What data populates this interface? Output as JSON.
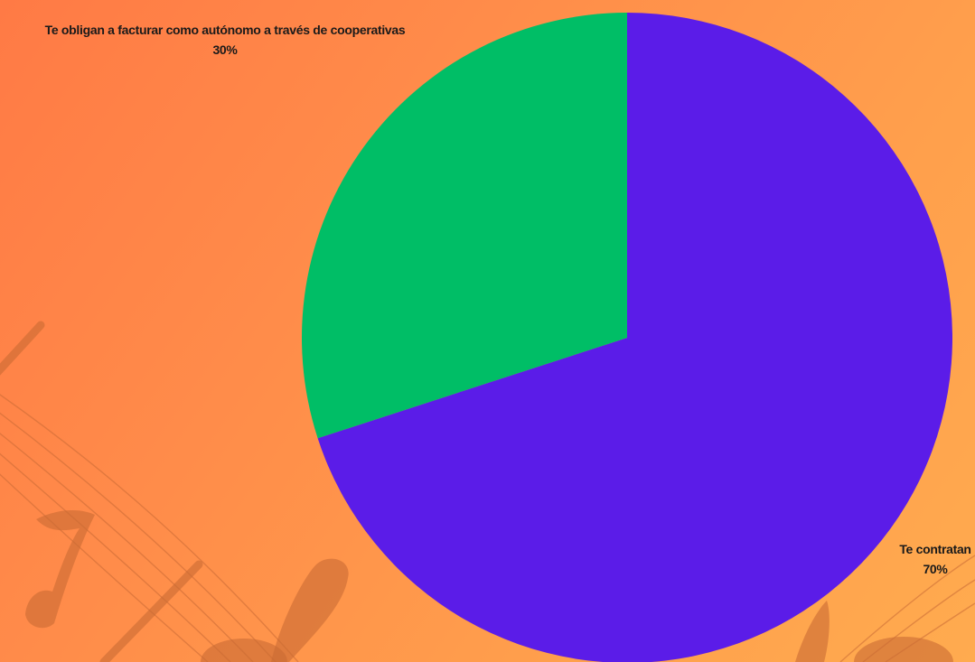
{
  "chart_data": {
    "type": "pie",
    "categories": [
      "Te contratan",
      "Te obligan a facturar como autónomo a través de cooperativas"
    ],
    "values": [
      70,
      30
    ],
    "labels": [
      "70%",
      "30%"
    ],
    "colors": [
      "#5b1ce8",
      "#00be66"
    ],
    "title": "",
    "legend": "none"
  },
  "background": {
    "gradient_colors": [
      "#ff7a45",
      "#ffab4f"
    ],
    "decor_color": "#c9672f",
    "decor_icon": "music-notes-staff-icon"
  }
}
